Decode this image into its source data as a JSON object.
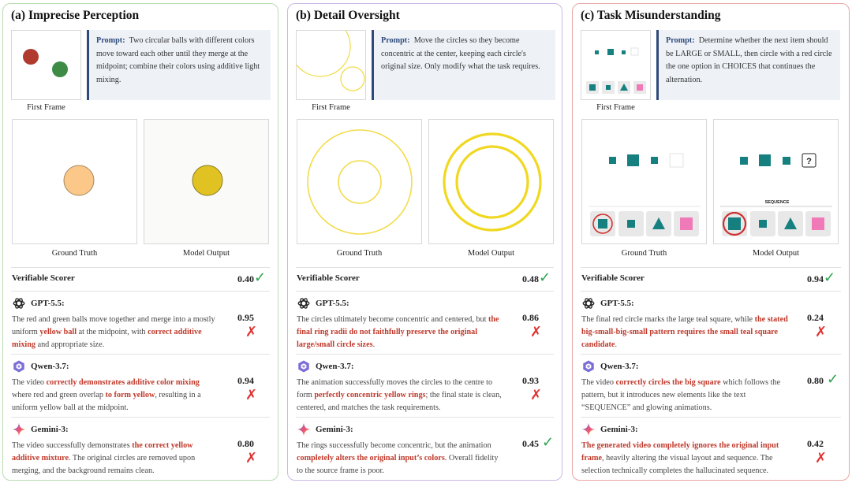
{
  "panels": [
    {
      "id": "a",
      "title": "(a) Imprecise Perception",
      "first_frame_label": "First Frame",
      "prompt_label": "Prompt:",
      "prompt_text": "Two circular balls with different colors move toward each other until they merge at the midpoint; combine their colors using additive light mixing.",
      "gt_label": "Ground Truth",
      "mo_label": "Model Output",
      "scorer_label": "Verifiable Scorer",
      "scorer_score": "0.40",
      "scorer_mark": "✓",
      "models": [
        {
          "name": "GPT-5.5:",
          "icon": "openai-icon",
          "score": "0.95",
          "mark": "✗",
          "segments": [
            {
              "t": "The red and green balls move together and merge into a mostly uniform ",
              "h": false
            },
            {
              "t": "yellow ball",
              "h": true
            },
            {
              "t": " at the midpoint, with ",
              "h": false
            },
            {
              "t": "correct additive mixing",
              "h": true
            },
            {
              "t": " and appropriate size.",
              "h": false
            }
          ]
        },
        {
          "name": "Qwen-3.7:",
          "icon": "qwen-icon",
          "score": "0.94",
          "mark": "✗",
          "segments": [
            {
              "t": "The video ",
              "h": false
            },
            {
              "t": "correctly demonstrates additive color mixing",
              "h": true
            },
            {
              "t": " where red and green overlap ",
              "h": false
            },
            {
              "t": "to form yellow",
              "h": true
            },
            {
              "t": ", resulting in a uniform yellow ball at the midpoint.",
              "h": false
            }
          ]
        },
        {
          "name": "Gemini-3:",
          "icon": "gemini-icon",
          "score": "0.80",
          "mark": "✗",
          "segments": [
            {
              "t": "The video successfully demonstrates ",
              "h": false
            },
            {
              "t": "the correct yellow additive mixture",
              "h": true
            },
            {
              "t": ". The original circles are removed upon merging, and the background remains clean.",
              "h": false
            }
          ]
        }
      ]
    },
    {
      "id": "b",
      "title": "(b) Detail Oversight",
      "first_frame_label": "First Frame",
      "prompt_label": "Prompt:",
      "prompt_text": "Move the circles so they become concentric at the center, keeping each circle's original size. Only modify what the task requires.",
      "gt_label": "Ground Truth",
      "mo_label": "Model Output",
      "scorer_label": "Verifiable Scorer",
      "scorer_score": "0.48",
      "scorer_mark": "✓",
      "models": [
        {
          "name": "GPT-5.5:",
          "icon": "openai-icon",
          "score": "0.86",
          "mark": "✗",
          "segments": [
            {
              "t": "The circles ultimately become concentric and centered, but ",
              "h": false
            },
            {
              "t": "the final ring radii do not faithfully preserve the original large/small circle sizes",
              "h": true
            },
            {
              "t": ".",
              "h": false
            }
          ]
        },
        {
          "name": "Qwen-3.7:",
          "icon": "qwen-icon",
          "score": "0.93",
          "mark": "✗",
          "segments": [
            {
              "t": "The animation successfully moves the circles to the centre to form ",
              "h": false
            },
            {
              "t": "perfectly concentric yellow rings",
              "h": true
            },
            {
              "t": "; the final state is clean, centered, and matches the task requirements.",
              "h": false
            }
          ]
        },
        {
          "name": "Gemini-3:",
          "icon": "gemini-icon",
          "score": "0.45",
          "mark": "✓",
          "segments": [
            {
              "t": "The rings successfully become concentric, but the animation ",
              "h": false
            },
            {
              "t": "completely alters the original input’s colors",
              "h": true
            },
            {
              "t": ". Overall fidelity to the source frame is poor.",
              "h": false
            }
          ]
        }
      ]
    },
    {
      "id": "c",
      "title": "(c) Task Misunderstanding",
      "first_frame_label": "First Frame",
      "prompt_label": "Prompt:",
      "prompt_text": "Determine whether the next item should be LARGE or SMALL, then circle with a red circle the one option in CHOICES that continues the alternation.",
      "gt_label": "Ground Truth",
      "mo_label": "Model Output",
      "mo_question": "?",
      "mo_sequence": "SEQUENCE",
      "scorer_label": "Verifiable Scorer",
      "scorer_score": "0.94",
      "scorer_mark": "✓",
      "models": [
        {
          "name": "GPT-5.5:",
          "icon": "openai-icon",
          "score": "0.24",
          "mark": "✗",
          "segments": [
            {
              "t": "The final red circle marks the large teal square, while ",
              "h": false
            },
            {
              "t": "the stated big-small-big-small pattern requires the small teal square candidate",
              "h": true
            },
            {
              "t": ".",
              "h": false
            }
          ]
        },
        {
          "name": "Qwen-3.7:",
          "icon": "qwen-icon",
          "score": "0.80",
          "mark": "✓",
          "segments": [
            {
              "t": "The video ",
              "h": false
            },
            {
              "t": "correctly circles the big square",
              "h": true
            },
            {
              "t": " which follows the pattern, but it introduces new elements like the text “SEQUENCE” and glowing animations.",
              "h": false
            }
          ]
        },
        {
          "name": "Gemini-3:",
          "icon": "gemini-icon",
          "score": "0.42",
          "mark": "✗",
          "segments": [
            {
              "t": "The generated video completely ignores the original input frame",
              "h": true
            },
            {
              "t": ", heavily altering the visual layout and sequence. The selection technically completes the hallucinated sequence.",
              "h": false
            }
          ]
        }
      ]
    }
  ]
}
